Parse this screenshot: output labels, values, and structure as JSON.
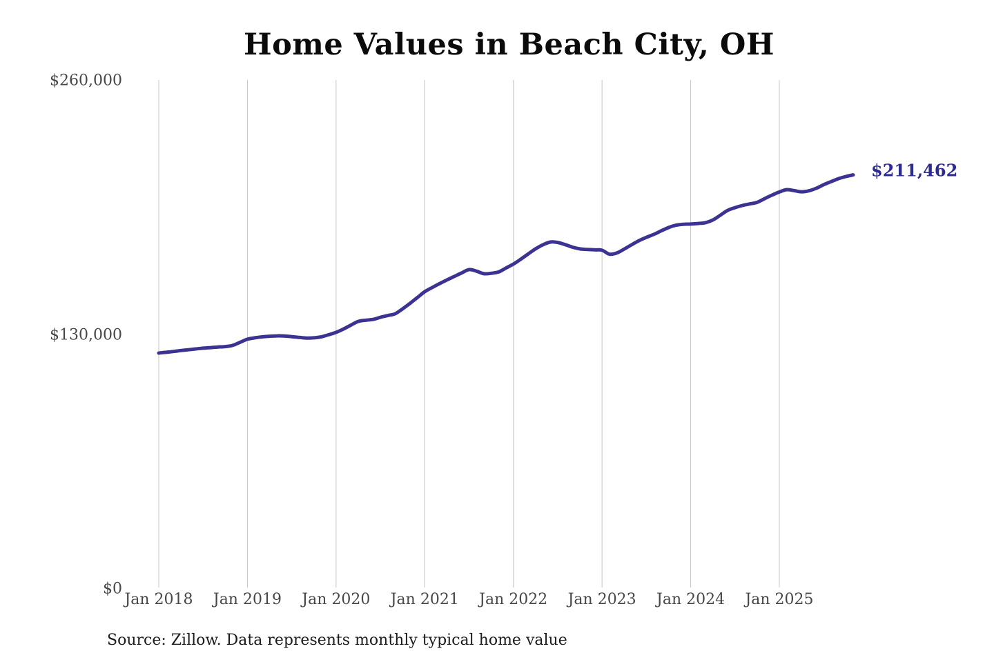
{
  "chart_data": {
    "type": "line",
    "title": "Home Values in Beach City, OH",
    "xlabel": "",
    "ylabel": "",
    "ylim": [
      0,
      260000
    ],
    "grid": "vertical-only",
    "legend": "none",
    "y_ticks": [
      {
        "value": 260000,
        "label": "$260,000"
      },
      {
        "value": 130000,
        "label": "$130,000"
      },
      {
        "value": 0,
        "label": "$0"
      }
    ],
    "x_tick_labels": [
      "Jan 2018",
      "Jan 2019",
      "Jan 2020",
      "Jan 2021",
      "Jan 2022",
      "Jan 2023",
      "Jan 2024",
      "Jan 2025"
    ],
    "end_label": "$211,462",
    "final_value": 211462,
    "colors": {
      "line": "#3b3292",
      "end_label": "#2e2b8f",
      "gridline": "#c4c4c4",
      "tick_text": "#474747",
      "title_text": "#0b0b0b"
    },
    "series": [
      {
        "name": "Monthly typical home value",
        "x_start": "2018-01",
        "x_end": "2025-11",
        "x_interval": "month",
        "values": [
          120300,
          120700,
          121100,
          121600,
          122000,
          122400,
          122800,
          123100,
          123400,
          123600,
          124200,
          125800,
          127400,
          128100,
          128600,
          128900,
          129100,
          129000,
          128700,
          128300,
          128000,
          128100,
          128600,
          129700,
          130900,
          132600,
          134600,
          136500,
          137100,
          137500,
          138600,
          139500,
          140400,
          142900,
          145700,
          148700,
          151700,
          153800,
          155800,
          157700,
          159500,
          161300,
          163000,
          162200,
          160900,
          161100,
          161800,
          163800,
          165800,
          168300,
          171000,
          173600,
          175700,
          177100,
          176900,
          175800,
          174500,
          173600,
          173300,
          173100,
          172900,
          170900,
          171500,
          173500,
          175700,
          177800,
          179500,
          181000,
          182800,
          184500,
          185700,
          186200,
          186300,
          186600,
          187000,
          188400,
          190800,
          193300,
          194700,
          195800,
          196600,
          197400,
          199300,
          201100,
          202700,
          203900,
          203400,
          202800,
          203300,
          204600,
          206400,
          208000,
          209500,
          210600,
          211462
        ]
      }
    ],
    "source_note": "Source: Zillow. Data represents monthly typical home value"
  }
}
